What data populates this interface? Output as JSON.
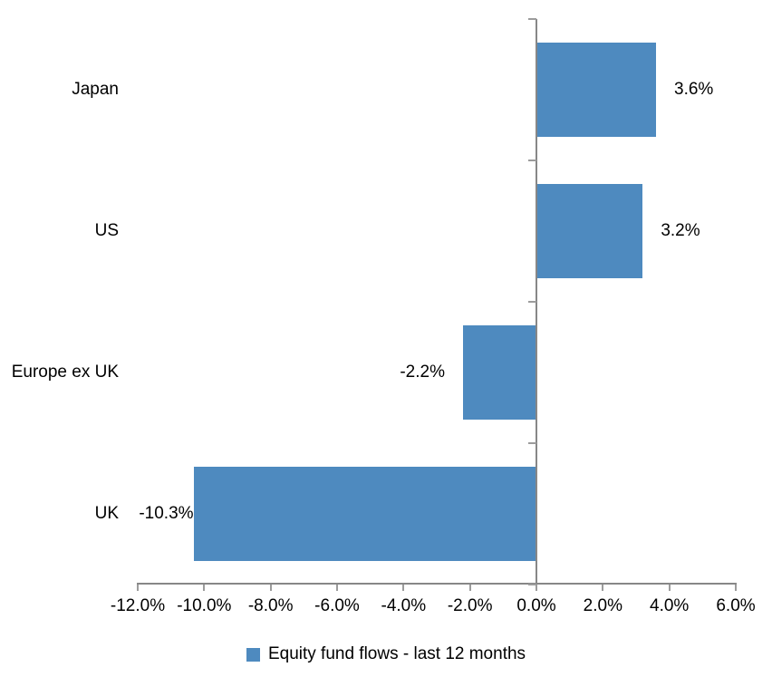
{
  "chart_data": {
    "type": "bar",
    "orientation": "horizontal",
    "title": "",
    "categories": [
      "Japan",
      "US",
      "Europe ex UK",
      "UK"
    ],
    "series": [
      {
        "name": "Equity fund flows - last 12 months",
        "values": [
          3.6,
          3.2,
          -2.2,
          -10.3
        ],
        "data_labels": [
          "3.6%",
          "3.2%",
          "-2.2%",
          "-10.3%"
        ]
      }
    ],
    "xlim": [
      -12,
      6
    ],
    "x_ticks": [
      -12,
      -10,
      -8,
      -6,
      -4,
      -2,
      0,
      2,
      4,
      6
    ],
    "x_tick_labels": [
      "-12.0%",
      "-10.0%",
      "-8.0%",
      "-6.0%",
      "-4.0%",
      "-2.0%",
      "0.0%",
      "2.0%",
      "4.0%",
      "6.0%"
    ],
    "grid": false,
    "legend_position": "bottom",
    "legend_label": "Equity fund flows - last 12 months",
    "colors": {
      "bar": "#4e8abf",
      "axis_line": "#878787",
      "tick": "#9c9c9c",
      "text": "#000000",
      "background": "#ffffff"
    }
  }
}
